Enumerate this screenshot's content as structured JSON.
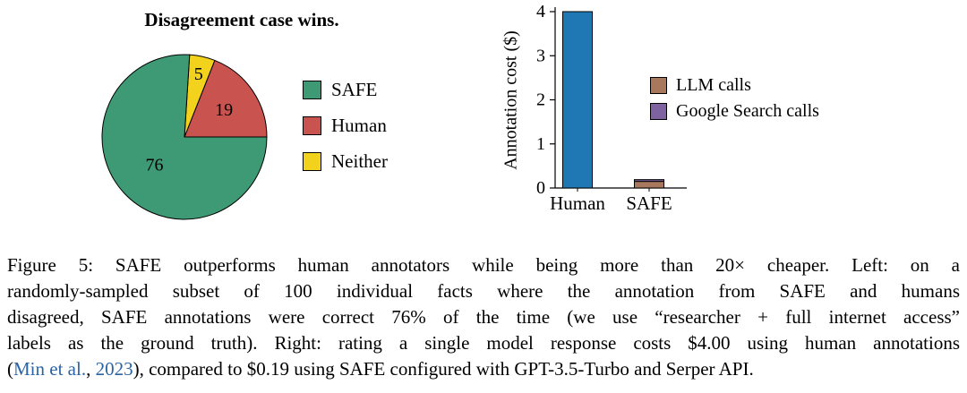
{
  "colors": {
    "link": "#2A64A5",
    "axis": "#000000"
  },
  "chart_data": [
    {
      "type": "pie",
      "title": "Disagreement case wins.",
      "slices": [
        {
          "label": "SAFE",
          "value": 76,
          "color": "#3E9A75"
        },
        {
          "label": "Human",
          "value": 19,
          "color": "#C9534F"
        },
        {
          "label": "Neither",
          "value": 5,
          "color": "#F2D21C"
        }
      ],
      "legend_position": "right"
    },
    {
      "type": "bar",
      "ylabel": "Annotation cost ($)",
      "ylim": [
        0,
        4
      ],
      "yticks": [
        0,
        1,
        2,
        3,
        4
      ],
      "categories": [
        "Human",
        "SAFE"
      ],
      "stacks": [
        {
          "category": "Human",
          "segments": [
            {
              "name": "Human",
              "value": 4.0,
              "color": "#1F77B4"
            }
          ]
        },
        {
          "category": "SAFE",
          "segments": [
            {
              "name": "LLM calls",
              "value": 0.15,
              "color": "#A8785E"
            },
            {
              "name": "Google Search calls",
              "value": 0.04,
              "color": "#7F63A1"
            }
          ]
        }
      ],
      "legend": [
        "LLM calls",
        "Google Search calls"
      ],
      "legend_position": "right",
      "grid": "off"
    }
  ],
  "caption": {
    "lines": [
      {
        "segments": [
          {
            "t": "Figure 5: SAFE outperforms human annotators while being more than 20× cheaper. Left: on a"
          }
        ]
      },
      {
        "segments": [
          {
            "t": "randomly-sampled subset of 100 individual facts where the annotation from SAFE and humans"
          }
        ]
      },
      {
        "segments": [
          {
            "t": "disagreed, SAFE annotations were correct 76% of the time (we use “researcher + full internet access”"
          }
        ]
      },
      {
        "segments": [
          {
            "t": "labels as the ground truth). Right: rating a single model response costs $4.00 using human annotations"
          }
        ]
      },
      {
        "segments": [
          {
            "t": "("
          },
          {
            "t": "Min et al.",
            "link": true
          },
          {
            "t": ", "
          },
          {
            "t": "2023",
            "link": true
          },
          {
            "t": "), compared to $0.19 using SAFE configured with GPT-3.5-Turbo and Serper API."
          }
        ]
      }
    ]
  }
}
